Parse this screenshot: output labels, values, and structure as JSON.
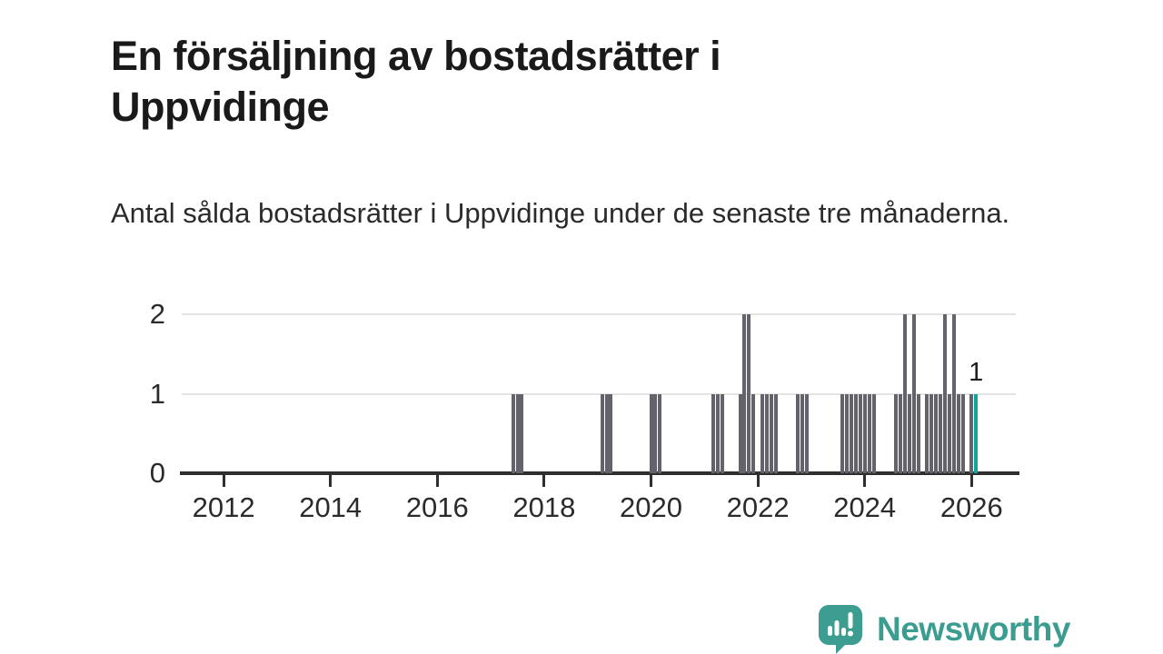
{
  "title": "En försäljning av bostadsrätter i Uppvidinge",
  "subtitle": "Antal sålda bostadsrätter i Uppvidinge under de senaste tre månaderna.",
  "branding": {
    "logo_text": "Newsworthy"
  },
  "colors": {
    "bar": "#64626a",
    "highlight": "#0ba79d",
    "brand_teal": "#3d9d91",
    "axis": "#2f2f2f",
    "gridline": "#e4e4e4",
    "text": "#1a1a1a"
  },
  "chart_data": {
    "type": "bar",
    "title": "En försäljning av bostadsrätter i Uppvidinge",
    "subtitle": "Antal sålda bostadsrätter i Uppvidinge under de senaste tre månaderna.",
    "xlabel": "",
    "ylabel": "",
    "ylim": [
      0,
      2
    ],
    "yticks": [
      "0",
      "1",
      "2"
    ],
    "xticks": [
      "2012",
      "2014",
      "2016",
      "2018",
      "2020",
      "2022",
      "2024",
      "2026"
    ],
    "grid": true,
    "legend": false,
    "series_start": "2011-04",
    "series_end": "2026-02",
    "default_value": 0,
    "points": [
      {
        "month": "2017-06",
        "value": 1
      },
      {
        "month": "2017-07",
        "value": 1
      },
      {
        "month": "2017-08",
        "value": 1
      },
      {
        "month": "2019-02",
        "value": 1
      },
      {
        "month": "2019-03",
        "value": 1
      },
      {
        "month": "2019-04",
        "value": 1
      },
      {
        "month": "2020-01",
        "value": 1
      },
      {
        "month": "2020-02",
        "value": 1
      },
      {
        "month": "2020-03",
        "value": 1
      },
      {
        "month": "2021-03",
        "value": 1
      },
      {
        "month": "2021-04",
        "value": 1
      },
      {
        "month": "2021-05",
        "value": 1
      },
      {
        "month": "2021-09",
        "value": 1
      },
      {
        "month": "2021-10",
        "value": 2
      },
      {
        "month": "2021-11",
        "value": 2
      },
      {
        "month": "2021-12",
        "value": 1
      },
      {
        "month": "2022-02",
        "value": 1
      },
      {
        "month": "2022-03",
        "value": 1
      },
      {
        "month": "2022-04",
        "value": 1
      },
      {
        "month": "2022-05",
        "value": 1
      },
      {
        "month": "2022-10",
        "value": 1
      },
      {
        "month": "2022-11",
        "value": 1
      },
      {
        "month": "2022-12",
        "value": 1
      },
      {
        "month": "2023-08",
        "value": 1
      },
      {
        "month": "2023-09",
        "value": 1
      },
      {
        "month": "2023-10",
        "value": 1
      },
      {
        "month": "2023-11",
        "value": 1
      },
      {
        "month": "2023-12",
        "value": 1
      },
      {
        "month": "2024-01",
        "value": 1
      },
      {
        "month": "2024-02",
        "value": 1
      },
      {
        "month": "2024-03",
        "value": 1
      },
      {
        "month": "2024-08",
        "value": 1
      },
      {
        "month": "2024-09",
        "value": 1
      },
      {
        "month": "2024-10",
        "value": 2
      },
      {
        "month": "2024-11",
        "value": 1
      },
      {
        "month": "2024-12",
        "value": 2
      },
      {
        "month": "2025-01",
        "value": 1
      },
      {
        "month": "2025-03",
        "value": 1
      },
      {
        "month": "2025-04",
        "value": 1
      },
      {
        "month": "2025-05",
        "value": 1
      },
      {
        "month": "2025-06",
        "value": 1
      },
      {
        "month": "2025-07",
        "value": 2
      },
      {
        "month": "2025-08",
        "value": 1
      },
      {
        "month": "2025-09",
        "value": 2
      },
      {
        "month": "2025-10",
        "value": 1
      },
      {
        "month": "2025-11",
        "value": 1
      },
      {
        "month": "2026-01",
        "value": 1
      },
      {
        "month": "2026-02",
        "value": 1
      }
    ],
    "highlight": {
      "month": "2026-02",
      "value": 1,
      "label": "1"
    }
  }
}
